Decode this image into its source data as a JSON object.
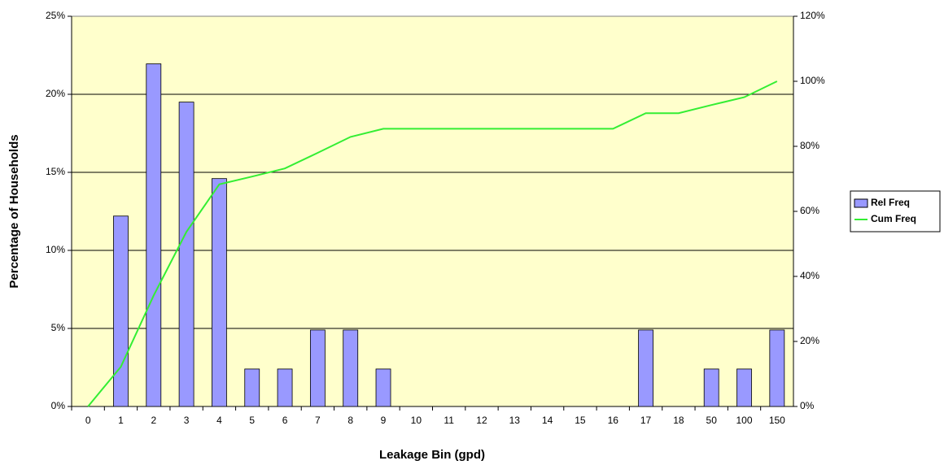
{
  "chart_data": {
    "type": "bar",
    "x_label": "Leakage Bin (gpd)",
    "y_label": "Percentage of Households",
    "categories": [
      "0",
      "1",
      "2",
      "3",
      "4",
      "5",
      "6",
      "7",
      "8",
      "9",
      "10",
      "11",
      "12",
      "13",
      "14",
      "15",
      "16",
      "17",
      "18",
      "50",
      "100",
      "150"
    ],
    "series": [
      {
        "name": "Rel Freq",
        "type": "bar",
        "color": "#9999ff",
        "axis": "y",
        "values": [
          0,
          12.2,
          21.95,
          19.5,
          14.6,
          2.4,
          2.4,
          4.9,
          4.9,
          2.4,
          0,
          0,
          0,
          0,
          0,
          0,
          0,
          4.9,
          0,
          2.4,
          2.4,
          4.9
        ]
      },
      {
        "name": "Cum Freq",
        "type": "line",
        "color": "#33ee33",
        "axis": "y2",
        "values": [
          0,
          12.2,
          34.1,
          53.7,
          68.3,
          70.7,
          73.2,
          78.0,
          82.9,
          85.4,
          85.4,
          85.4,
          85.4,
          85.4,
          85.4,
          85.4,
          85.4,
          90.2,
          90.2,
          92.7,
          95.1,
          100
        ]
      }
    ],
    "ylim": [
      0,
      25
    ],
    "yticks": [
      {
        "value": 0,
        "label": "0%"
      },
      {
        "value": 5,
        "label": "5%"
      },
      {
        "value": 10,
        "label": "10%"
      },
      {
        "value": 15,
        "label": "15%"
      },
      {
        "value": 20,
        "label": "20%"
      },
      {
        "value": 25,
        "label": "25%"
      }
    ],
    "y2lim": [
      0,
      120
    ],
    "y2ticks": [
      {
        "value": 0,
        "label": "0%"
      },
      {
        "value": 20,
        "label": "20%"
      },
      {
        "value": 40,
        "label": "40%"
      },
      {
        "value": 60,
        "label": "60%"
      },
      {
        "value": 80,
        "label": "80%"
      },
      {
        "value": 100,
        "label": "100%"
      },
      {
        "value": 120,
        "label": "120%"
      }
    ],
    "grid": true,
    "legend": "right"
  }
}
